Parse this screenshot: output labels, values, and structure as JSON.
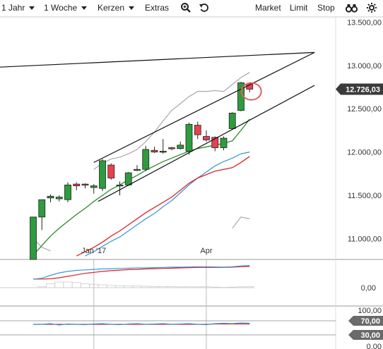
{
  "toolbar": {
    "period": "1 Jahr",
    "interval": "1 Woche",
    "chart_type": "Kerzen",
    "extras": "Extras",
    "market": "Market",
    "limit": "Limit",
    "stop": "Stop",
    "icons": [
      "zoom-icon",
      "undo-icon",
      "binoculars-icon",
      "settings-icon"
    ]
  },
  "colors": {
    "bull": "#2e9b3e",
    "bear": "#e8414f",
    "ma_blue": "#3a9ad9",
    "ma_red": "#e02020",
    "ma_green": "#2a8a2a",
    "band_gray": "#a0a0a0",
    "price_tag_bg": "#3a3a3a",
    "indicator_tag_bg": "#6a6a6a"
  },
  "chart_data": {
    "type": "candlestick",
    "x_labels": [
      {
        "label": "Jan '17",
        "index": 7
      },
      {
        "label": "Apr",
        "index": 20
      }
    ],
    "y_ticks": [
      "13.500,00",
      "13.000,00",
      "12.500,00",
      "12.000,00",
      "11.500,00",
      "11.000,00"
    ],
    "y_tick_values": [
      13500,
      13000,
      12500,
      12000,
      11500,
      11000
    ],
    "ylim": [
      10760,
      13560
    ],
    "last_price": "12.726,03",
    "last_price_value": 12726,
    "candles": [
      {
        "o": 10760,
        "h": 11250,
        "l": 10760,
        "c": 11250
      },
      {
        "o": 11250,
        "h": 11450,
        "l": 11100,
        "c": 11450
      },
      {
        "o": 11470,
        "h": 11510,
        "l": 11420,
        "c": 11490
      },
      {
        "o": 11460,
        "h": 11500,
        "l": 11430,
        "c": 11480
      },
      {
        "o": 11450,
        "h": 11650,
        "l": 11420,
        "c": 11620
      },
      {
        "o": 11630,
        "h": 11650,
        "l": 11560,
        "c": 11610
      },
      {
        "o": 11630,
        "h": 11640,
        "l": 11580,
        "c": 11620
      },
      {
        "o": 11590,
        "h": 11630,
        "l": 11520,
        "c": 11610
      },
      {
        "o": 11580,
        "h": 11920,
        "l": 11550,
        "c": 11900
      },
      {
        "o": 11850,
        "h": 11870,
        "l": 11680,
        "c": 11700
      },
      {
        "o": 11610,
        "h": 11660,
        "l": 11500,
        "c": 11620
      },
      {
        "o": 11620,
        "h": 11770,
        "l": 11610,
        "c": 11760
      },
      {
        "o": 11800,
        "h": 11850,
        "l": 11780,
        "c": 11800
      },
      {
        "o": 11800,
        "h": 12070,
        "l": 11780,
        "c": 12030
      },
      {
        "o": 12020,
        "h": 12060,
        "l": 11990,
        "c": 12000
      },
      {
        "o": 12000,
        "h": 12150,
        "l": 11980,
        "c": 12010
      },
      {
        "o": 12050,
        "h": 12060,
        "l": 12020,
        "c": 12040
      },
      {
        "o": 12040,
        "h": 12120,
        "l": 12030,
        "c": 12080
      },
      {
        "o": 12010,
        "h": 12340,
        "l": 11970,
        "c": 12320
      },
      {
        "o": 12310,
        "h": 12350,
        "l": 12150,
        "c": 12200
      },
      {
        "o": 12180,
        "h": 12250,
        "l": 12120,
        "c": 12140
      },
      {
        "o": 12170,
        "h": 12180,
        "l": 12010,
        "c": 12050
      },
      {
        "o": 12050,
        "h": 12180,
        "l": 12020,
        "c": 12160
      },
      {
        "o": 12270,
        "h": 12460,
        "l": 12260,
        "c": 12450
      },
      {
        "o": 12480,
        "h": 12810,
        "l": 12470,
        "c": 12800
      },
      {
        "o": 12790,
        "h": 12800,
        "l": 12690,
        "c": 12726
      }
    ],
    "ma_green": [
      10810,
      10920,
      11030,
      11120,
      11200,
      11280,
      11350,
      11430,
      11500,
      11570,
      11620,
      11680,
      11730,
      11790,
      11840,
      11890,
      11930,
      11970,
      12010,
      12040,
      12060,
      12080,
      12100,
      12130,
      12250,
      12380
    ],
    "ma_red": [
      null,
      null,
      null,
      null,
      null,
      10800,
      10850,
      10900,
      10960,
      11030,
      11090,
      11160,
      11230,
      11300,
      11360,
      11420,
      11480,
      11560,
      11640,
      11700,
      11740,
      11780,
      11800,
      11820,
      11880,
      11950
    ],
    "ma_blue": [
      null,
      null,
      null,
      null,
      null,
      null,
      10800,
      10850,
      10910,
      10970,
      11020,
      11090,
      11160,
      11230,
      11290,
      11370,
      11440,
      11530,
      11620,
      11700,
      11770,
      11840,
      11890,
      11930,
      11980,
      12000
    ],
    "band_upper": [
      null,
      null,
      null,
      null,
      null,
      null,
      null,
      11800,
      11870,
      11920,
      11940,
      11980,
      12030,
      12120,
      12230,
      12360,
      12480,
      12560,
      12640,
      12700,
      12700,
      12710,
      12700,
      12780,
      12860,
      12920
    ],
    "band_lower": [
      11000,
      10900,
      10860,
      null,
      null,
      null,
      null,
      null,
      null,
      null,
      null,
      null,
      null,
      null,
      null,
      null,
      null,
      null,
      null,
      null,
      null,
      null,
      null,
      11120,
      11250,
      11230
    ],
    "trendlines": [
      {
        "from": {
          "i": -4,
          "v": 12980
        },
        "to": {
          "i": 32.5,
          "v": 13150
        }
      },
      {
        "from": {
          "i": 7,
          "v": 11880
        },
        "to": {
          "i": 32.5,
          "v": 13150
        }
      },
      {
        "from": {
          "i": 7.5,
          "v": 11430
        },
        "to": {
          "i": 32.5,
          "v": 12770
        }
      }
    ],
    "highlight_circle": {
      "i": 25.2,
      "v": 12700
    },
    "sub1": {
      "y_tick": "0,00",
      "blue": [
        0.35,
        0.38,
        0.5,
        0.6,
        0.66,
        0.7,
        0.72,
        0.74,
        0.76,
        0.77,
        0.78,
        0.79,
        0.8,
        0.8,
        0.81,
        0.82,
        0.83,
        0.83,
        0.84,
        0.85,
        0.85,
        0.84,
        0.83,
        0.85,
        0.88,
        0.9
      ],
      "red": [
        0.35,
        0.35,
        0.36,
        0.4,
        0.46,
        0.52,
        0.58,
        0.62,
        0.66,
        0.69,
        0.71,
        0.73,
        0.74,
        0.76,
        0.77,
        0.78,
        0.79,
        0.8,
        0.81,
        0.82,
        0.82,
        0.82,
        0.82,
        0.83,
        0.85,
        0.86
      ],
      "hist": [
        0.0,
        0.03,
        0.14,
        0.2,
        0.2,
        0.18,
        0.14,
        0.12,
        0.1,
        0.08,
        0.07,
        0.06,
        0.06,
        0.05,
        0.04,
        0.04,
        0.04,
        0.03,
        0.03,
        0.03,
        0.03,
        0.02,
        0.01,
        0.02,
        0.03,
        0.04
      ]
    },
    "sub2": {
      "y_tick_top": "100,00",
      "y_tick_bottom": "0,00",
      "band_high": "70,00",
      "band_low": "30,00",
      "band_high_value": 70,
      "band_low_value": 30,
      "blue": [
        60,
        60,
        62,
        58,
        61,
        60,
        59,
        61,
        62,
        60,
        59,
        61,
        62,
        60,
        61,
        62,
        60,
        61,
        62,
        60,
        59,
        62,
        63,
        62,
        64,
        63
      ],
      "red": [
        60,
        60,
        60,
        60,
        60,
        60,
        60,
        60,
        60,
        60,
        60,
        60,
        60,
        60,
        60,
        60,
        60,
        60,
        60,
        60,
        60,
        61,
        61,
        61,
        61,
        61
      ]
    }
  }
}
